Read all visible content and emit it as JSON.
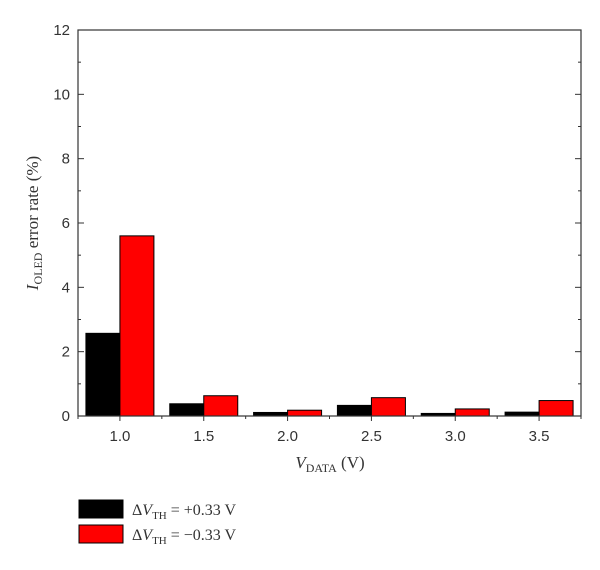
{
  "chart_data": {
    "type": "bar",
    "categories": [
      "1.0",
      "1.5",
      "2.0",
      "2.5",
      "3.0",
      "3.5"
    ],
    "series": [
      {
        "name": "ΔV_TH = +0.33 V",
        "legend": {
          "delta": "Δ",
          "var": "V",
          "sub": "TH",
          "rest": " = +0.33 V"
        },
        "color": "#000000",
        "values": [
          2.57,
          0.38,
          0.11,
          0.33,
          0.08,
          0.12
        ]
      },
      {
        "name": "ΔV_TH = −0.33 V",
        "legend": {
          "delta": "Δ",
          "var": "V",
          "sub": "TH",
          "rest": " = −0.33 V"
        },
        "color": "#ff0000",
        "values": [
          5.6,
          0.63,
          0.18,
          0.57,
          0.22,
          0.48
        ]
      }
    ],
    "ylim": [
      0,
      12
    ],
    "yticks": [
      "0",
      "2",
      "4",
      "6",
      "8",
      "10",
      "12"
    ],
    "xlabel": {
      "var": "V",
      "sub": "DATA",
      "rest": " (V)"
    },
    "ylabel": {
      "var": "I",
      "sub": "OLED",
      "rest": " error rate (%)"
    },
    "grid": false,
    "legend_position": "bottom-left"
  }
}
